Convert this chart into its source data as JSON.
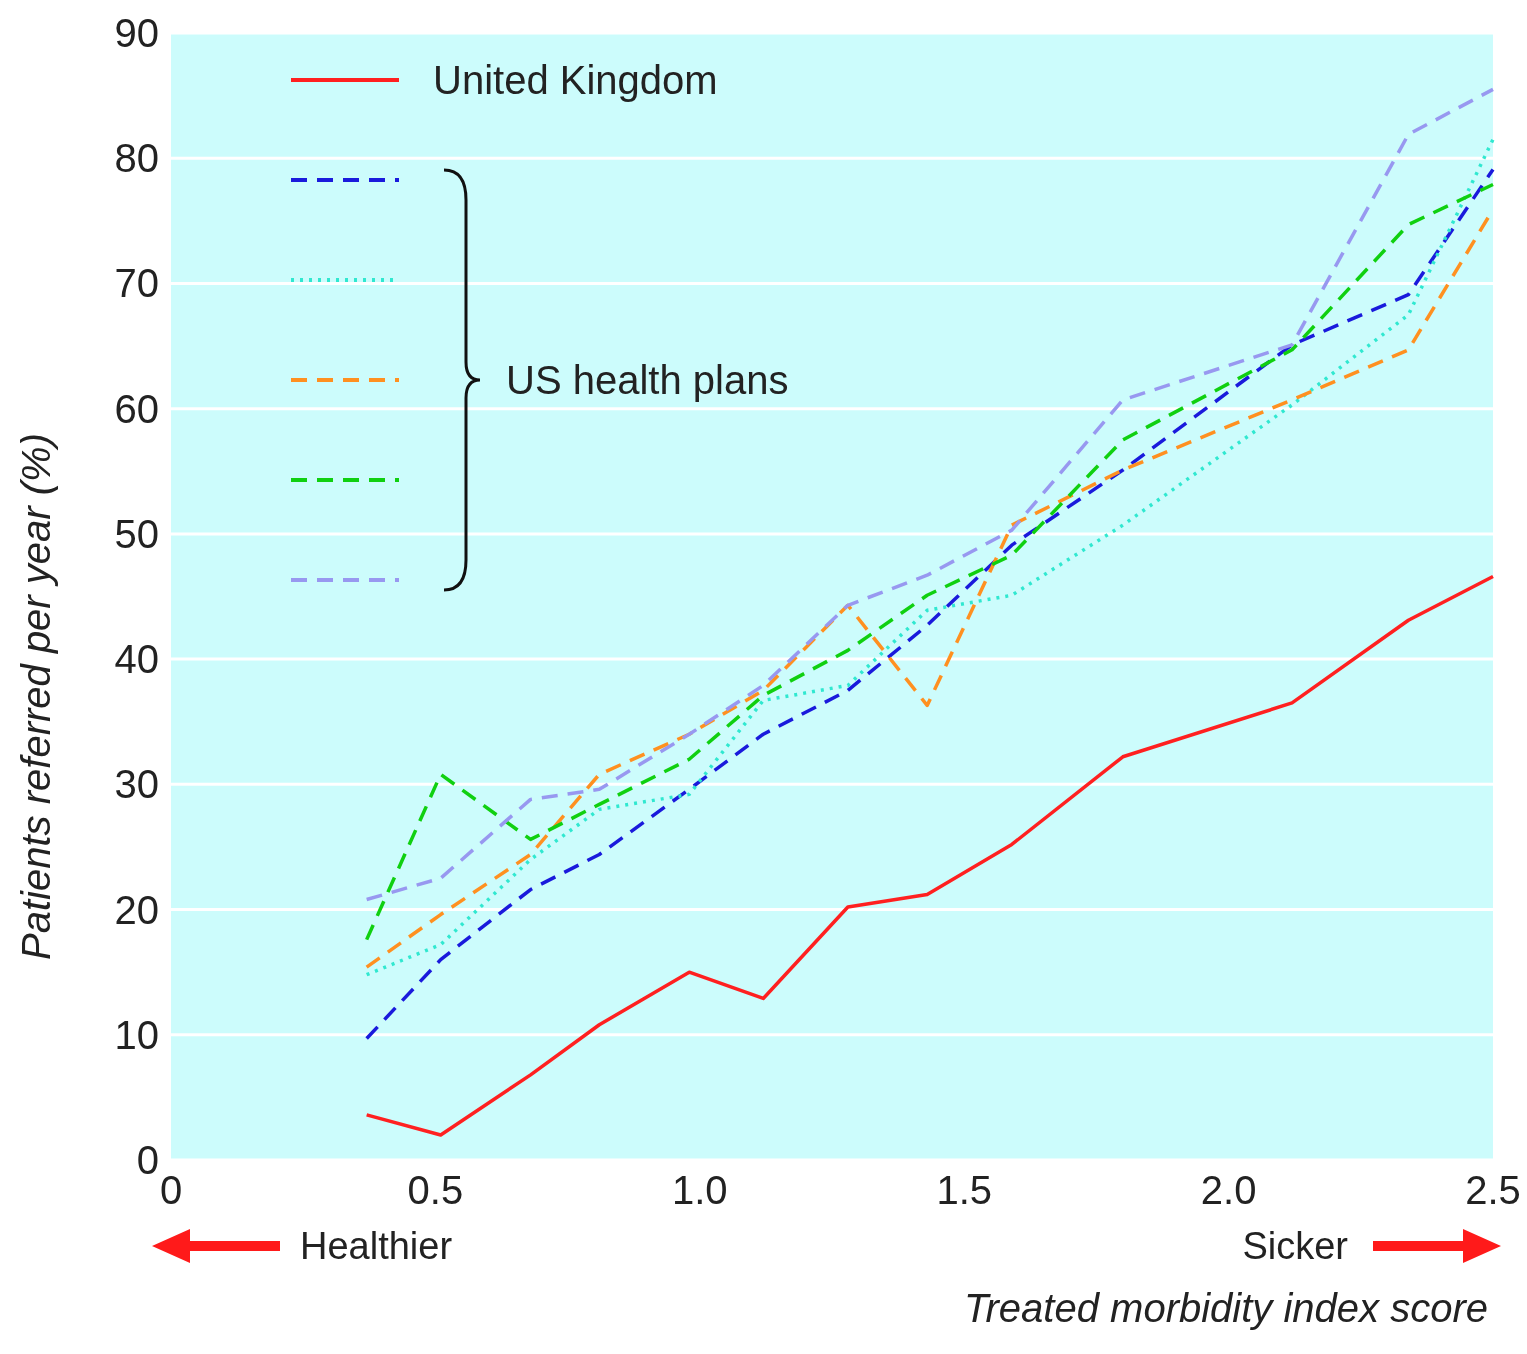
{
  "chart_data": {
    "type": "line",
    "xlabel": "Treated morbidity index score",
    "ylabel": "Patients referred per year (%)",
    "xlim": [
      0,
      2.5
    ],
    "xticks": [
      0,
      0.5,
      {
        "value": 1,
        "label": "1.0"
      },
      1.5,
      {
        "value": 2,
        "label": "2.0"
      },
      2.5
    ],
    "ylim": [
      0,
      90
    ],
    "yticks": [
      0,
      10,
      20,
      30,
      40,
      50,
      60,
      70,
      80,
      90
    ],
    "grid": "y",
    "legend": "top left",
    "marker": "none",
    "annotations": [
      "US health plans",
      "Healthier",
      "Sicker"
    ],
    "series": [
      {
        "name": "United Kingdom",
        "color": "#ff2020",
        "line_style": "solid",
        "x": [
          0.37,
          0.51,
          0.68,
          0.81,
          0.98,
          1.12,
          1.28,
          1.43,
          1.59,
          1.8,
          2.12,
          2.34,
          2.5
        ],
        "values": [
          3.6,
          2.0,
          6.8,
          10.8,
          15.0,
          12.9,
          20.2,
          21.2,
          25.2,
          32.2,
          36.5,
          43.1,
          46.6
        ]
      },
      {
        "color": "#1a1adc",
        "line_style": "dashed",
        "x": [
          0.37,
          0.51,
          0.68,
          0.81,
          0.98,
          1.12,
          1.28,
          1.43,
          1.59,
          1.8,
          2.12,
          2.34,
          2.5
        ],
        "values": [
          9.7,
          16,
          21.6,
          24.4,
          29.6,
          34,
          37.5,
          42.7,
          49.1,
          55.1,
          65.1,
          69.1,
          79.1
        ]
      },
      {
        "color": "#30e8d0",
        "line_style": "dotted",
        "x": [
          0.37,
          0.51,
          0.68,
          0.81,
          0.98,
          1.12,
          1.28,
          1.43,
          1.59,
          1.8,
          2.12,
          2.34,
          2.5
        ],
        "values": [
          14.8,
          17.2,
          24,
          28,
          29.2,
          36.7,
          37.9,
          43.9,
          45.1,
          50.7,
          60.3,
          67.5,
          81.5
        ]
      },
      {
        "color": "#ff9020",
        "line_style": "dashed",
        "x": [
          0.37,
          0.51,
          0.68,
          0.81,
          0.98,
          1.12,
          1.28,
          1.43,
          1.59,
          1.8,
          2.12,
          2.34,
          2.5
        ],
        "values": [
          15.4,
          19.6,
          24.4,
          30.8,
          34,
          37.5,
          44.3,
          36.3,
          50.7,
          55.1,
          60.7,
          64.7,
          75.9
        ]
      },
      {
        "color": "#10d010",
        "line_style": "dashed",
        "x": [
          0.37,
          0.51,
          0.68,
          0.81,
          0.98,
          1.12,
          1.28,
          1.43,
          1.59,
          1.8,
          2.12,
          2.34,
          2.5
        ],
        "values": [
          17.6,
          30.8,
          25.6,
          28.4,
          32,
          37.1,
          40.7,
          45.1,
          48.3,
          57.5,
          64.7,
          74.7,
          77.9
        ]
      },
      {
        "color": "#9898f0",
        "line_style": "dashed",
        "x": [
          0.37,
          0.51,
          0.68,
          0.81,
          0.98,
          1.12,
          1.28,
          1.43,
          1.59,
          1.8,
          2.12,
          2.34,
          2.5
        ],
        "values": [
          20.8,
          22.5,
          28.8,
          29.6,
          34,
          37.9,
          44.3,
          46.7,
          50.3,
          60.7,
          65.1,
          81.9,
          85.5
        ]
      }
    ]
  }
}
